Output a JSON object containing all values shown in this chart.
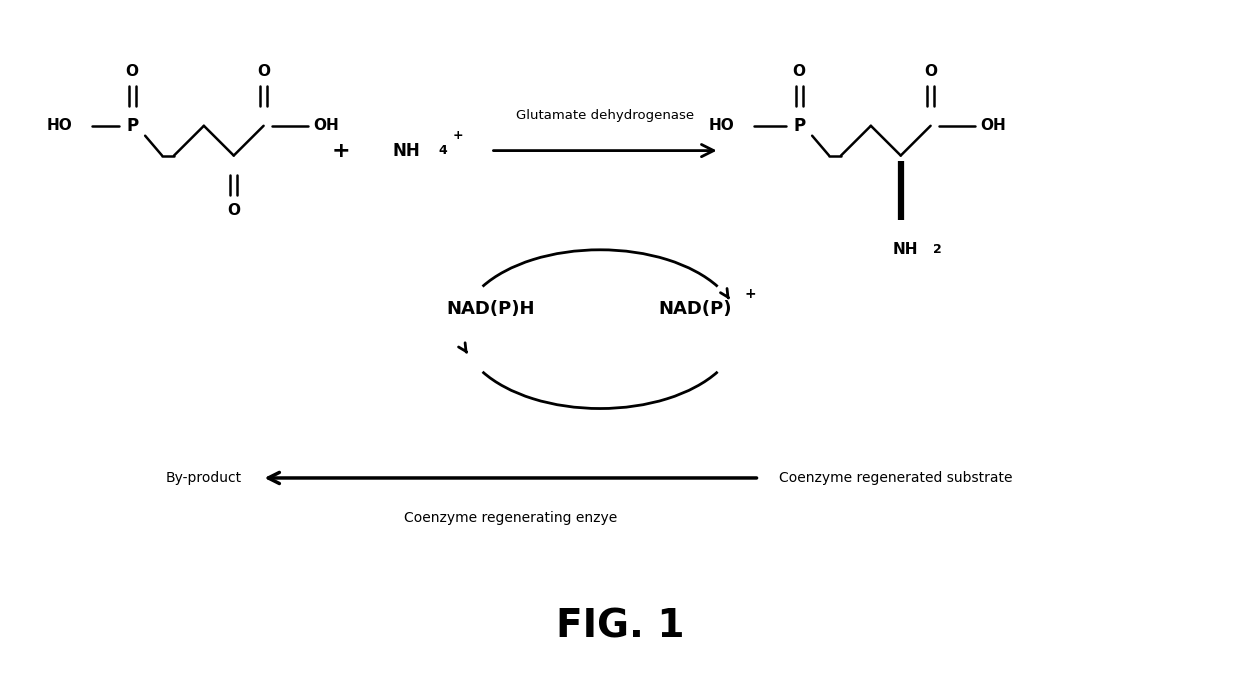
{
  "bg_color": "#ffffff",
  "fig_width": 12.4,
  "fig_height": 6.99,
  "title": "FIG. 1",
  "enzyme_label": "Glutamate dehydrogenase",
  "nadph_label": "NAD(P)H",
  "nadp_label": "NAD(P)",
  "nadp_plus": "+",
  "byproduct_label": "By-product",
  "coenzyme_substrate_label": "Coenzyme regenerated substrate",
  "coenzyme_enzyme_label": "Coenzyme regenerating enzye"
}
